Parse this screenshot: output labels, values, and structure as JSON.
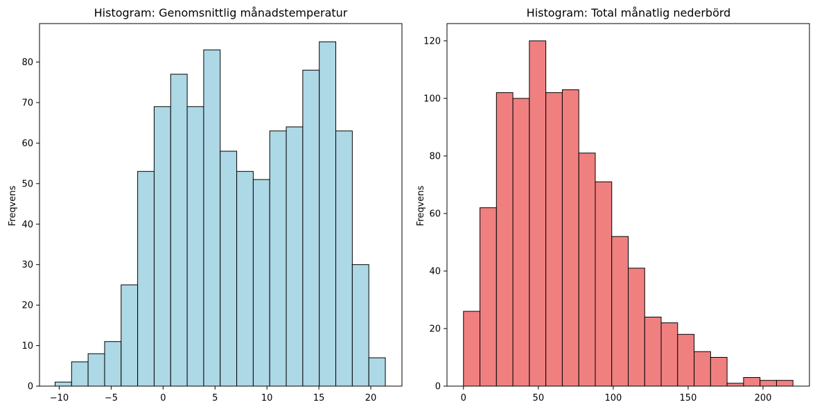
{
  "chart_data": [
    {
      "type": "bar",
      "title": "Histogram: Genomsnittlig månadstemperatur",
      "xlabel": "",
      "ylabel": "Freqvens",
      "bin_start": -10.4,
      "bin_width": 1.59,
      "values": [
        1,
        6,
        8,
        11,
        25,
        53,
        69,
        77,
        69,
        83,
        58,
        53,
        51,
        63,
        64,
        78,
        85,
        63,
        30,
        7
      ],
      "xlim": [
        -11.9,
        23.0
      ],
      "ylim": [
        0,
        89.5
      ],
      "xticks": [
        -10,
        -5,
        0,
        5,
        10,
        15,
        20
      ],
      "yticks": [
        0,
        10,
        20,
        30,
        40,
        50,
        60,
        70,
        80
      ],
      "color": "#add8e6",
      "edge_color": "#000000",
      "grid": false
    },
    {
      "type": "bar",
      "title": "Histogram: Total månatlig nederbörd",
      "xlabel": "",
      "ylabel": "Freqvens",
      "bin_start": 0,
      "bin_width": 11.0,
      "values": [
        26,
        62,
        102,
        100,
        120,
        102,
        103,
        81,
        71,
        52,
        41,
        24,
        22,
        18,
        12,
        10,
        1,
        3,
        2,
        2
      ],
      "xlim": [
        -11.0,
        231.0
      ],
      "ylim": [
        0,
        126.0
      ],
      "xticks": [
        0,
        50,
        100,
        150,
        200
      ],
      "yticks": [
        0,
        20,
        40,
        60,
        80,
        100,
        120
      ],
      "color": "#f08080",
      "edge_color": "#000000",
      "grid": false
    }
  ]
}
